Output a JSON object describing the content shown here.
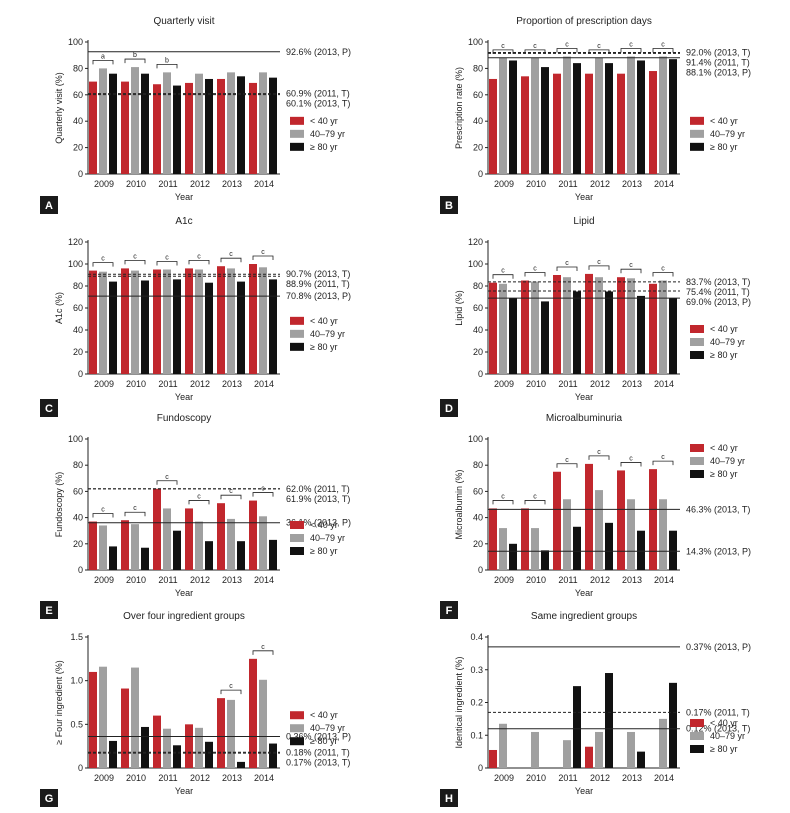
{
  "figure": {
    "colors": {
      "lt40": "#c1272d",
      "mid": "#a0a0a0",
      "ge80": "#111111",
      "axis": "#222222"
    },
    "legend": [
      "< 40 yr",
      "40–79 yr",
      "≥ 80 yr"
    ]
  },
  "chart_data": [
    {
      "panel": "A",
      "type": "bar",
      "title": "Quarterly visit",
      "xlabel": "Year",
      "ylabel": "Quarterly visit (%)",
      "ylim": [
        0,
        100
      ],
      "yticks": [
        0,
        20,
        40,
        60,
        80,
        100
      ],
      "tick_labels": [
        "0",
        "20",
        "40",
        "60",
        "80",
        "100"
      ],
      "categories": [
        "2009",
        "2010",
        "2011",
        "2012",
        "2013",
        "2014"
      ],
      "series": [
        {
          "name": "< 40 yr",
          "values": [
            70,
            70,
            68,
            69,
            72,
            69
          ]
        },
        {
          "name": "40–79 yr",
          "values": [
            80,
            81,
            77,
            76,
            77,
            77
          ]
        },
        {
          "name": "≥ 80 yr",
          "values": [
            76,
            76,
            67,
            72,
            74,
            73
          ]
        }
      ],
      "ref_lines": [
        {
          "value": 92.6,
          "label": "92.6% (2013, P)",
          "style": "solid"
        },
        {
          "value": 60.9,
          "label": "60.9% (2011, T)",
          "style": "dashed"
        },
        {
          "value": 60.1,
          "label": "60.1% (2013, T)",
          "style": "dashed"
        }
      ],
      "sig": [
        {
          "cat": 0,
          "mark": "a"
        },
        {
          "cat": 1,
          "mark": "b"
        },
        {
          "cat": 2,
          "mark": "b"
        }
      ],
      "legend_place": "right-middle"
    },
    {
      "panel": "B",
      "type": "bar",
      "title": "Proportion of prescription days",
      "xlabel": "Year",
      "ylabel": "Prescription rate (%)",
      "ylim": [
        0,
        100
      ],
      "yticks": [
        0,
        20,
        40,
        60,
        80,
        100
      ],
      "tick_labels": [
        "0",
        "20",
        "40",
        "60",
        "80",
        "100"
      ],
      "categories": [
        "2009",
        "2010",
        "2011",
        "2012",
        "2013",
        "2014"
      ],
      "series": [
        {
          "name": "< 40 yr",
          "values": [
            72,
            74,
            76,
            76,
            76,
            78
          ]
        },
        {
          "name": "40–79 yr",
          "values": [
            88,
            88,
            89,
            88,
            89,
            89
          ]
        },
        {
          "name": "≥ 80 yr",
          "values": [
            86,
            81,
            84,
            84,
            86,
            87
          ]
        }
      ],
      "ref_lines": [
        {
          "value": 92.0,
          "label": "92.0% (2013, T)",
          "style": "dashed"
        },
        {
          "value": 91.4,
          "label": "91.4% (2011, T)",
          "style": "dashed"
        },
        {
          "value": 88.1,
          "label": "88.1% (2013, P)",
          "style": "solid"
        }
      ],
      "sig": [
        {
          "cat": 0,
          "mark": "c"
        },
        {
          "cat": 1,
          "mark": "c"
        },
        {
          "cat": 2,
          "mark": "c"
        },
        {
          "cat": 3,
          "mark": "c"
        },
        {
          "cat": 4,
          "mark": "c"
        },
        {
          "cat": 5,
          "mark": "c"
        }
      ],
      "legend_place": "right-middle"
    },
    {
      "panel": "C",
      "type": "bar",
      "title": "A1c",
      "xlabel": "Year",
      "ylabel": "A1c (%)",
      "ylim": [
        0,
        120
      ],
      "yticks": [
        0,
        20,
        40,
        60,
        80,
        100,
        120
      ],
      "tick_labels": [
        "0",
        "20",
        "40",
        "60",
        "80",
        "100",
        "120"
      ],
      "categories": [
        "2009",
        "2010",
        "2011",
        "2012",
        "2013",
        "2014"
      ],
      "series": [
        {
          "name": "< 40 yr",
          "values": [
            94,
            96,
            95,
            96,
            98,
            100
          ]
        },
        {
          "name": "40–79 yr",
          "values": [
            93,
            94,
            95,
            95,
            96,
            97
          ]
        },
        {
          "name": "≥ 80 yr",
          "values": [
            84,
            85,
            86,
            83,
            84,
            86
          ]
        }
      ],
      "ref_lines": [
        {
          "value": 90.7,
          "label": "90.7% (2013, T)",
          "style": "dashed"
        },
        {
          "value": 88.9,
          "label": "88.9% (2011, T)",
          "style": "dashed"
        },
        {
          "value": 70.8,
          "label": "70.8% (2013, P)",
          "style": "solid"
        }
      ],
      "sig": [
        {
          "cat": 0,
          "mark": "c"
        },
        {
          "cat": 1,
          "mark": "c"
        },
        {
          "cat": 2,
          "mark": "c"
        },
        {
          "cat": 3,
          "mark": "c"
        },
        {
          "cat": 4,
          "mark": "c"
        },
        {
          "cat": 5,
          "mark": "c"
        }
      ],
      "legend_place": "right-middle"
    },
    {
      "panel": "D",
      "type": "bar",
      "title": "Lipid",
      "xlabel": "Year",
      "ylabel": "Lipid (%)",
      "ylim": [
        0,
        120
      ],
      "yticks": [
        0,
        20,
        40,
        60,
        80,
        100,
        120
      ],
      "tick_labels": [
        "0",
        "20",
        "40",
        "60",
        "80",
        "100",
        "120"
      ],
      "categories": [
        "2009",
        "2010",
        "2011",
        "2012",
        "2013",
        "2014"
      ],
      "series": [
        {
          "name": "< 40 yr",
          "values": [
            83,
            85,
            90,
            91,
            88,
            82
          ]
        },
        {
          "name": "40–79 yr",
          "values": [
            82,
            84,
            88,
            88,
            87,
            85
          ]
        },
        {
          "name": "≥ 80 yr",
          "values": [
            69,
            66,
            75,
            75,
            71,
            69
          ]
        }
      ],
      "ref_lines": [
        {
          "value": 83.7,
          "label": "83.7% (2013, T)",
          "style": "dashed"
        },
        {
          "value": 75.4,
          "label": "75.4% (2011, T)",
          "style": "dashed"
        },
        {
          "value": 69.0,
          "label": "69.0% (2013, P)",
          "style": "solid"
        }
      ],
      "sig": [
        {
          "cat": 0,
          "mark": "c"
        },
        {
          "cat": 1,
          "mark": "c"
        },
        {
          "cat": 2,
          "mark": "c"
        },
        {
          "cat": 3,
          "mark": "c"
        },
        {
          "cat": 4,
          "mark": "c"
        },
        {
          "cat": 5,
          "mark": "c"
        }
      ],
      "legend_place": "right-bottom"
    },
    {
      "panel": "E",
      "type": "bar",
      "title": "Fundoscopy",
      "xlabel": "Year",
      "ylabel": "Fundoscopy (%)",
      "ylim": [
        0,
        100
      ],
      "yticks": [
        0,
        20,
        40,
        60,
        80,
        100
      ],
      "tick_labels": [
        "0",
        "20",
        "40",
        "60",
        "80",
        "100"
      ],
      "categories": [
        "2009",
        "2010",
        "2011",
        "2012",
        "2013",
        "2014"
      ],
      "series": [
        {
          "name": "< 40 yr",
          "values": [
            37,
            38,
            62,
            47,
            51,
            53
          ]
        },
        {
          "name": "40–79 yr",
          "values": [
            34,
            35,
            47,
            37,
            39,
            41
          ]
        },
        {
          "name": "≥ 80 yr",
          "values": [
            18,
            17,
            30,
            22,
            22,
            23
          ]
        }
      ],
      "ref_lines": [
        {
          "value": 62.0,
          "label": "62.0% (2011, T)",
          "style": "dashed"
        },
        {
          "value": 61.9,
          "label": "61.9% (2013, T)",
          "style": "dashed"
        },
        {
          "value": 36.1,
          "label": "36.1% (2013, P)",
          "style": "solid"
        }
      ],
      "sig": [
        {
          "cat": 0,
          "mark": "c"
        },
        {
          "cat": 1,
          "mark": "c"
        },
        {
          "cat": 2,
          "mark": "c"
        },
        {
          "cat": 3,
          "mark": "c"
        },
        {
          "cat": 4,
          "mark": "c"
        },
        {
          "cat": 5,
          "mark": "c"
        }
      ],
      "legend_place": "right-bottom"
    },
    {
      "panel": "F",
      "type": "bar",
      "title": "Microalbuminuria",
      "xlabel": "Year",
      "ylabel": "Microalbumin (%)",
      "ylim": [
        0,
        100
      ],
      "yticks": [
        0,
        20,
        40,
        60,
        80,
        100
      ],
      "tick_labels": [
        "0",
        "20",
        "40",
        "60",
        "80",
        "100"
      ],
      "categories": [
        "2009",
        "2010",
        "2011",
        "2012",
        "2013",
        "2014"
      ],
      "series": [
        {
          "name": "< 40 yr",
          "values": [
            47,
            47,
            75,
            81,
            76,
            77
          ]
        },
        {
          "name": "40–79 yr",
          "values": [
            32,
            32,
            54,
            61,
            54,
            54
          ]
        },
        {
          "name": "≥ 80 yr",
          "values": [
            20,
            15,
            33,
            36,
            30,
            30
          ]
        }
      ],
      "ref_lines": [
        {
          "value": 46.3,
          "label": "46.3% (2013, T)",
          "style": "solid"
        },
        {
          "value": 14.3,
          "label": "14.3% (2013, P)",
          "style": "solid"
        }
      ],
      "sig": [
        {
          "cat": 0,
          "mark": "c"
        },
        {
          "cat": 1,
          "mark": "c"
        },
        {
          "cat": 2,
          "mark": "c"
        },
        {
          "cat": 3,
          "mark": "c"
        },
        {
          "cat": 4,
          "mark": "c"
        },
        {
          "cat": 5,
          "mark": "c"
        }
      ],
      "legend_place": "right-top"
    },
    {
      "panel": "G",
      "type": "bar",
      "title": "Over four ingredient groups",
      "xlabel": "Year",
      "ylabel": "≥ Four ingredient (%)",
      "ylim": [
        0,
        1.5
      ],
      "yticks": [
        0,
        0.5,
        1.0,
        1.5
      ],
      "tick_labels": [
        "0",
        "0.5",
        "1.0",
        "1.5"
      ],
      "categories": [
        "2009",
        "2010",
        "2011",
        "2012",
        "2013",
        "2014"
      ],
      "series": [
        {
          "name": "< 40 yr",
          "values": [
            1.1,
            0.91,
            0.6,
            0.5,
            0.8,
            1.25
          ]
        },
        {
          "name": "40–79 yr",
          "values": [
            1.16,
            1.15,
            0.45,
            0.46,
            0.78,
            1.01
          ]
        },
        {
          "name": "≥ 80 yr",
          "values": [
            0.31,
            0.47,
            0.26,
            0.3,
            0.07,
            0.28
          ]
        }
      ],
      "ref_lines": [
        {
          "value": 0.36,
          "label": "0.36% (2013, P)",
          "style": "solid"
        },
        {
          "value": 0.18,
          "label": "0.18% (2011, T)",
          "style": "dashed"
        },
        {
          "value": 0.17,
          "label": "0.17% (2013, T)",
          "style": "dashed"
        }
      ],
      "sig": [
        {
          "cat": 4,
          "mark": "c"
        },
        {
          "cat": 5,
          "mark": "c"
        }
      ],
      "legend_place": "right-middle"
    },
    {
      "panel": "H",
      "type": "bar",
      "title": "Same ingredient groups",
      "xlabel": "Year",
      "ylabel": "Identical ingredient (%)",
      "ylim": [
        0,
        0.4
      ],
      "yticks": [
        0,
        0.1,
        0.2,
        0.3,
        0.4
      ],
      "tick_labels": [
        "0",
        "0.1",
        "0.2",
        "0.3",
        "0.4"
      ],
      "categories": [
        "2009",
        "2010",
        "2011",
        "2012",
        "2013",
        "2014"
      ],
      "series": [
        {
          "name": "< 40 yr",
          "values": [
            0.055,
            0,
            0,
            0.065,
            0,
            0
          ]
        },
        {
          "name": "40–79 yr",
          "values": [
            0.135,
            0.11,
            0.085,
            0.11,
            0.11,
            0.15
          ]
        },
        {
          "name": "≥ 80 yr",
          "values": [
            0,
            0,
            0.25,
            0.29,
            0.05,
            0.26
          ]
        }
      ],
      "ref_lines": [
        {
          "value": 0.37,
          "label": "0.37% (2013, P)",
          "style": "solid"
        },
        {
          "value": 0.17,
          "label": "0.17% (2011, T)",
          "style": "dashed"
        },
        {
          "value": 0.12,
          "label": "0.12% (2013, T)",
          "style": "solid"
        }
      ],
      "sig": [],
      "legend_place": "right-bottom"
    }
  ]
}
